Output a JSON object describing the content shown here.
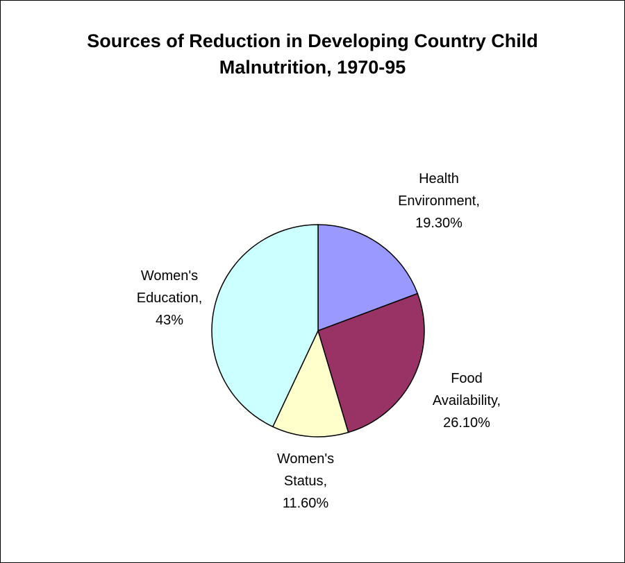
{
  "chart_data": {
    "type": "pie",
    "title_lines": [
      "Sources of Reduction in Developing Country Child",
      "Malnutrition, 1970-95"
    ],
    "slices": [
      {
        "name": "Health Environment",
        "value": 19.3,
        "label_lines": [
          "Health",
          "Environment,",
          "19.30%"
        ],
        "color": "#9999ff"
      },
      {
        "name": "Food Availability",
        "value": 26.1,
        "label_lines": [
          "Food",
          "Availability,",
          "26.10%"
        ],
        "color": "#993366"
      },
      {
        "name": "Women's Status",
        "value": 11.6,
        "label_lines": [
          "Women's",
          "Status,",
          "11.60%"
        ],
        "color": "#ffffcc"
      },
      {
        "name": "Women's Education",
        "value": 43,
        "label_lines": [
          "Women's",
          "Education,",
          "43%"
        ],
        "color": "#ccffff"
      }
    ]
  }
}
